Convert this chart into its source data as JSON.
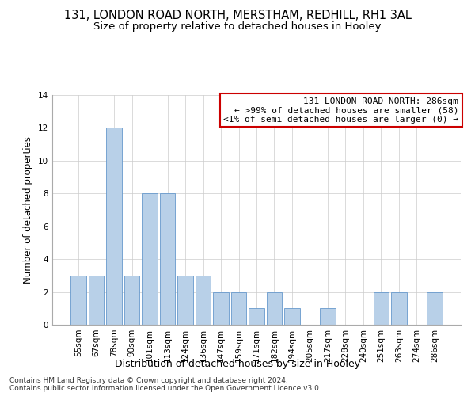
{
  "title": "131, LONDON ROAD NORTH, MERSTHAM, REDHILL, RH1 3AL",
  "subtitle": "Size of property relative to detached houses in Hooley",
  "xlabel": "Distribution of detached houses by size in Hooley",
  "ylabel": "Number of detached properties",
  "categories": [
    "55sqm",
    "67sqm",
    "78sqm",
    "90sqm",
    "101sqm",
    "113sqm",
    "124sqm",
    "136sqm",
    "147sqm",
    "159sqm",
    "171sqm",
    "182sqm",
    "194sqm",
    "205sqm",
    "217sqm",
    "228sqm",
    "240sqm",
    "251sqm",
    "263sqm",
    "274sqm",
    "286sqm"
  ],
  "values": [
    3,
    3,
    12,
    3,
    8,
    8,
    3,
    3,
    2,
    2,
    1,
    2,
    1,
    0,
    1,
    0,
    0,
    2,
    2,
    0,
    2
  ],
  "bar_color": "#b8d0e8",
  "bar_edge_color": "#6699cc",
  "annotation_box_text": "131 LONDON ROAD NORTH: 286sqm\n← >99% of detached houses are smaller (58)\n<1% of semi-detached houses are larger (0) →",
  "annotation_box_color": "#cc0000",
  "annotation_box_bg": "#ffffff",
  "ylim": [
    0,
    14
  ],
  "yticks": [
    0,
    2,
    4,
    6,
    8,
    10,
    12,
    14
  ],
  "footer": "Contains HM Land Registry data © Crown copyright and database right 2024.\nContains public sector information licensed under the Open Government Licence v3.0.",
  "background_color": "#ffffff",
  "grid_color": "#cccccc",
  "title_fontsize": 10.5,
  "subtitle_fontsize": 9.5,
  "ylabel_fontsize": 8.5,
  "xlabel_fontsize": 9,
  "tick_fontsize": 7.5,
  "annotation_fontsize": 8,
  "footer_fontsize": 6.5
}
